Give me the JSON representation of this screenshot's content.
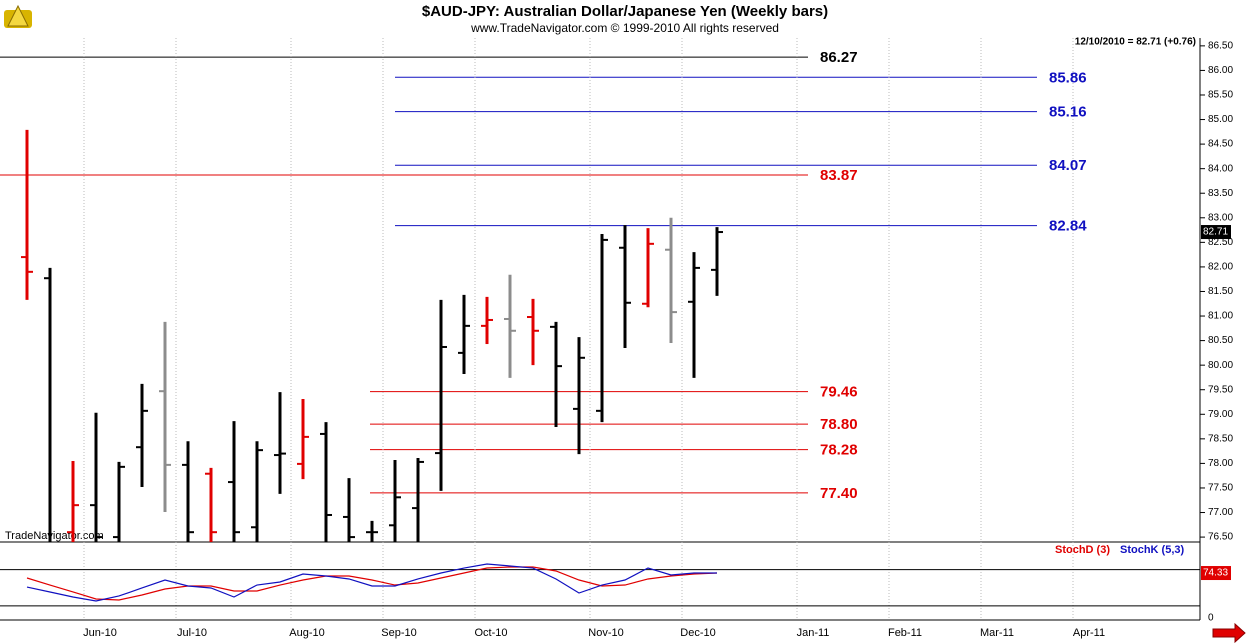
{
  "chart_data": [
    {
      "type": "ohlc",
      "title": "$AUD-JPY:  Australian Dollar/Japanese Yen  (Weekly bars)",
      "subtitle": "www.TradeNavigator.com © 1999-2010 All rights reserved",
      "annotation": "12/10/2010 = 82.71 (+0.76)",
      "watermark": "TradeNavigator.com",
      "categories": [
        null,
        null,
        null,
        "Jun-10",
        null,
        null,
        null,
        "Jul-10",
        null,
        null,
        null,
        null,
        "Aug-10",
        null,
        null,
        null,
        "Sep-10",
        null,
        null,
        null,
        "Oct-10",
        null,
        null,
        null,
        null,
        "Nov-10",
        null,
        null,
        null,
        "Dec-10",
        null,
        null,
        null,
        null,
        "Jan-11",
        null,
        null,
        null,
        "Feb-11",
        null,
        null,
        null,
        "Mar-11",
        null,
        null,
        null,
        "Apr-11",
        null,
        null,
        null,
        null
      ],
      "open": [
        82.2,
        81.77,
        76.6,
        77.15,
        76.5,
        78.33,
        79.47,
        77.97,
        77.79,
        77.62,
        76.7,
        78.17,
        77.99,
        78.6,
        76.91,
        76.6,
        76.74,
        77.09,
        78.21,
        80.25,
        80.8,
        80.94,
        80.98,
        80.78,
        79.11,
        79.07,
        82.39,
        81.25,
        82.35,
        81.29,
        81.94,
        null,
        null,
        null,
        null,
        null,
        null,
        null,
        null,
        null,
        null,
        null,
        null,
        null,
        null,
        null,
        null,
        null,
        null,
        null,
        null
      ],
      "high": [
        84.79,
        81.98,
        78.05,
        79.03,
        78.03,
        79.62,
        80.88,
        78.45,
        77.91,
        78.86,
        78.45,
        79.45,
        79.31,
        78.84,
        77.7,
        76.83,
        78.07,
        78.11,
        81.33,
        81.43,
        81.39,
        81.84,
        81.35,
        80.88,
        80.57,
        82.67,
        82.85,
        82.79,
        83.0,
        82.3,
        82.81,
        null,
        null,
        null,
        null,
        null,
        null,
        null,
        null,
        null,
        null,
        null,
        null,
        null,
        null,
        null,
        null,
        null,
        null,
        null,
        null
      ],
      "low": [
        81.33,
        76.0,
        76.2,
        76.2,
        76.2,
        77.52,
        77.01,
        76.2,
        76.2,
        76.2,
        76.2,
        77.38,
        77.68,
        76.2,
        76.2,
        76.2,
        76.2,
        76.2,
        77.44,
        79.82,
        80.43,
        79.74,
        80.0,
        78.74,
        78.19,
        78.84,
        80.35,
        81.18,
        80.45,
        79.74,
        81.41,
        null,
        null,
        null,
        null,
        null,
        null,
        null,
        null,
        null,
        null,
        null,
        null,
        null,
        null,
        null,
        null,
        null,
        null,
        null,
        null
      ],
      "close": [
        81.9,
        76.3,
        77.15,
        76.5,
        77.93,
        79.07,
        77.97,
        76.6,
        76.6,
        76.6,
        78.27,
        78.2,
        78.54,
        76.95,
        76.5,
        76.6,
        77.31,
        78.03,
        80.37,
        80.8,
        80.92,
        80.7,
        80.7,
        79.98,
        80.15,
        82.55,
        81.27,
        82.47,
        81.08,
        81.98,
        82.71,
        null,
        null,
        null,
        null,
        null,
        null,
        null,
        null,
        null,
        null,
        null,
        null,
        null,
        null,
        null,
        null,
        null,
        null,
        null,
        null
      ],
      "bar_colors": [
        "#e00000",
        "#000000",
        "#e00000",
        "#000000",
        "#000000",
        "#000000",
        "#8c8c8c",
        "#000000",
        "#e00000",
        "#000000",
        "#000000",
        "#000000",
        "#e00000",
        "#000000",
        "#000000",
        "#000000",
        "#000000",
        "#000000",
        "#000000",
        "#000000",
        "#e00000",
        "#8c8c8c",
        "#e00000",
        "#000000",
        "#000000",
        "#000000",
        "#000000",
        "#e00000",
        "#8c8c8c",
        "#000000",
        "#000000",
        null,
        null,
        null,
        null,
        null,
        null,
        null,
        null,
        null,
        null,
        null,
        null,
        null,
        null,
        null,
        null,
        null,
        null,
        null,
        null
      ],
      "levels": [
        {
          "value": 86.27,
          "color": "#000000",
          "from": "Jun-10"
        },
        {
          "value": 83.87,
          "color": "#e00000",
          "from": "Jun-10"
        },
        {
          "value": 85.86,
          "color": "#1010c0",
          "from": "Sep-10"
        },
        {
          "value": 85.16,
          "color": "#1010c0",
          "from": "Sep-10"
        },
        {
          "value": 84.07,
          "color": "#1010c0",
          "from": "Sep-10"
        },
        {
          "value": 82.84,
          "color": "#1010c0",
          "from": "Sep-10"
        },
        {
          "value": 79.46,
          "color": "#e00000",
          "from": "Sep-10"
        },
        {
          "value": 78.8,
          "label": "78.80",
          "color": "#e00000",
          "from": "Sep-10"
        },
        {
          "value": 78.28,
          "color": "#e00000",
          "from": "Sep-10"
        },
        {
          "value": 77.4,
          "label": "77.40",
          "color": "#e00000",
          "from": "Sep-10"
        }
      ],
      "ylim": [
        76.4,
        86.66
      ],
      "yticks": [
        {
          "value": 86.5,
          "label": "86.50"
        },
        {
          "value": 86,
          "label": "86.00"
        },
        {
          "value": 85.5,
          "label": "85.50"
        },
        {
          "value": 85,
          "label": "85.00"
        },
        {
          "value": 84.5,
          "label": "84.50"
        },
        {
          "value": 84,
          "label": "84.00"
        },
        {
          "value": 83.5,
          "label": "83.50"
        },
        {
          "value": 83,
          "label": "83.00"
        },
        {
          "value": 82.5,
          "label": "82.50"
        },
        {
          "value": 82,
          "label": "82.00"
        },
        {
          "value": 81.5,
          "label": "81.50"
        },
        {
          "value": 81,
          "label": "81.00"
        },
        {
          "value": 80.5,
          "label": "80.50"
        },
        {
          "value": 80,
          "label": "80.00"
        },
        {
          "value": 79.5,
          "label": "79.50"
        },
        {
          "value": 79,
          "label": "79.00"
        },
        {
          "value": 78.5,
          "label": "78.50"
        },
        {
          "value": 78,
          "label": "78.00"
        },
        {
          "value": 77.5,
          "label": "77.50"
        },
        {
          "value": 77,
          "label": "77.00"
        },
        {
          "value": 76.5,
          "label": "76.50"
        }
      ]
    },
    {
      "type": "line",
      "series": [
        {
          "name": "StochD (3)",
          "color": "#e00000",
          "values": [
            66.1,
            54.5,
            43.0,
            31.4,
            29.8,
            38.0,
            47.9,
            52.9,
            52.9,
            44.6,
            44.6,
            54.5,
            62.8,
            69.4,
            69.4,
            62.8,
            54.5,
            57.9,
            66.1,
            74.4,
            82.6,
            84.3,
            84.3,
            77.7,
            62.8,
            52.9,
            54.5,
            64.5,
            69.4,
            72.7,
            74.33,
            null,
            null,
            null,
            null,
            null,
            null,
            null,
            null,
            null,
            null,
            null,
            null,
            null,
            null,
            null,
            null,
            null,
            null,
            null,
            null
          ]
        },
        {
          "name": "StochK (5,3)",
          "color": "#1010c0",
          "values": [
            51.2,
            43.0,
            34.7,
            28.1,
            36.4,
            49.6,
            62.8,
            52.9,
            49.6,
            34.7,
            54.5,
            59.5,
            72.7,
            69.4,
            64.5,
            52.9,
            52.9,
            64.5,
            74.4,
            82.6,
            89.3,
            86.0,
            82.6,
            64.5,
            41.3,
            54.5,
            62.8,
            82.6,
            71.1,
            74.4,
            74.4,
            null,
            null,
            null,
            null,
            null,
            null,
            null,
            null,
            null,
            null,
            null,
            null,
            null,
            null,
            null,
            null,
            null,
            null,
            null,
            null
          ]
        }
      ],
      "reference_lines": [
        20,
        80
      ],
      "ylim": [
        0,
        100
      ],
      "yticks": [
        0
      ]
    }
  ]
}
